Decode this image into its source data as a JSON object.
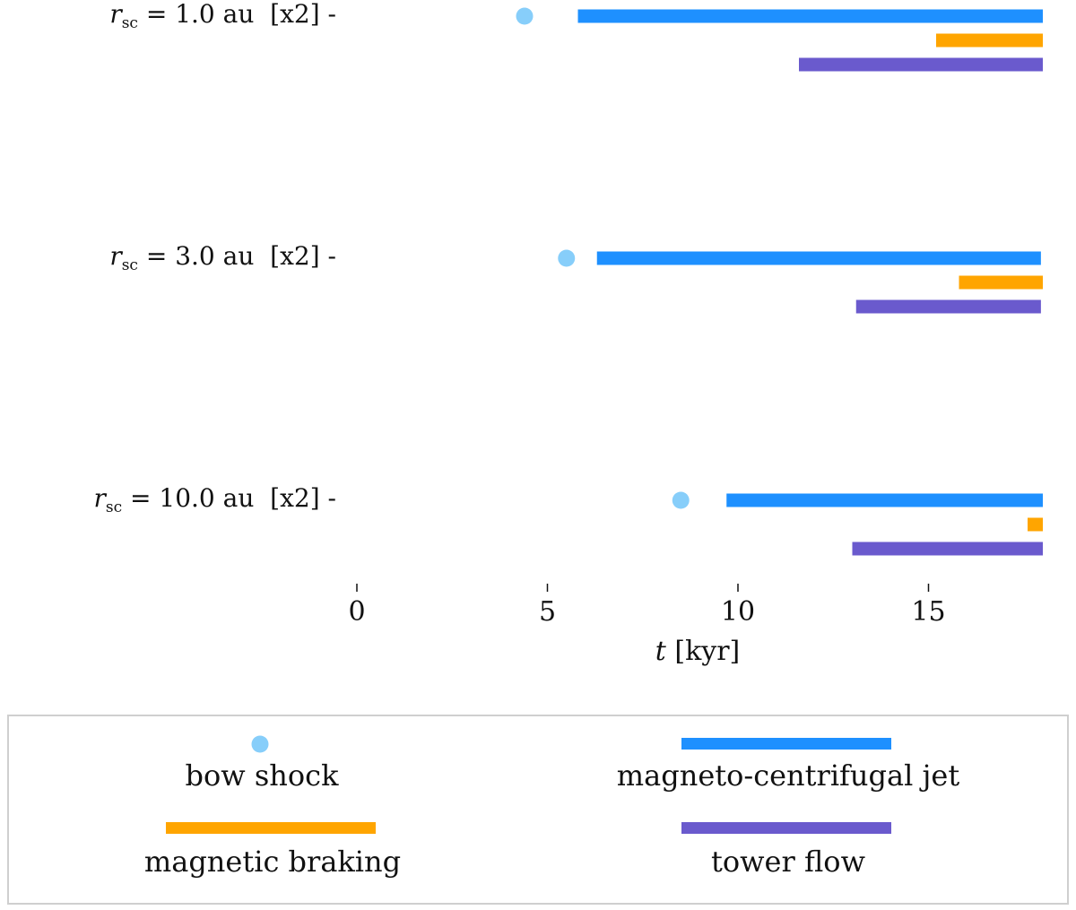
{
  "chart_data": {
    "type": "timeline",
    "xlabel_var": "t",
    "xlabel_unit": "[kyr]",
    "xlim": [
      0,
      18
    ],
    "xticks": [
      "0",
      "5",
      "10",
      "15"
    ],
    "xtick_values": [
      0,
      5,
      10,
      15
    ],
    "rows": [
      {
        "label_var": "r",
        "label_sub": "sc",
        "label_rest": " = 1.0 au  [x2] -",
        "bow_shock": 4.4,
        "magneto_centrifugal_jet": [
          5.8,
          18.0
        ],
        "magnetic_braking": [
          15.2,
          18.0
        ],
        "tower_flow": [
          11.6,
          18.0
        ]
      },
      {
        "label_var": "r",
        "label_sub": "sc",
        "label_rest": " = 3.0 au  [x2] -",
        "bow_shock": 5.5,
        "magneto_centrifugal_jet": [
          6.3,
          17.95
        ],
        "magnetic_braking": [
          15.8,
          18.0
        ],
        "tower_flow": [
          13.1,
          17.95
        ]
      },
      {
        "label_var": "r",
        "label_sub": "sc",
        "label_rest": " = 10.0 au  [x2] -",
        "bow_shock": 8.5,
        "magneto_centrifugal_jet": [
          9.7,
          18.0
        ],
        "magnetic_braking": [
          17.6,
          18.0
        ],
        "tower_flow": [
          13.0,
          18.0
        ]
      }
    ],
    "legend": {
      "position": "bottom",
      "entries": [
        {
          "key": "bow_shock",
          "label": "bow shock",
          "color": "#87CEFA",
          "marker": "dot"
        },
        {
          "key": "magneto_centrifugal_jet",
          "label": "magneto-centrifugal jet",
          "color": "#1E90FF",
          "marker": "bar"
        },
        {
          "key": "magnetic_braking",
          "label": "magnetic braking",
          "color": "#FFA500",
          "marker": "bar"
        },
        {
          "key": "tower_flow",
          "label": "tower flow",
          "color": "#6A5ACD",
          "marker": "bar"
        }
      ]
    }
  }
}
